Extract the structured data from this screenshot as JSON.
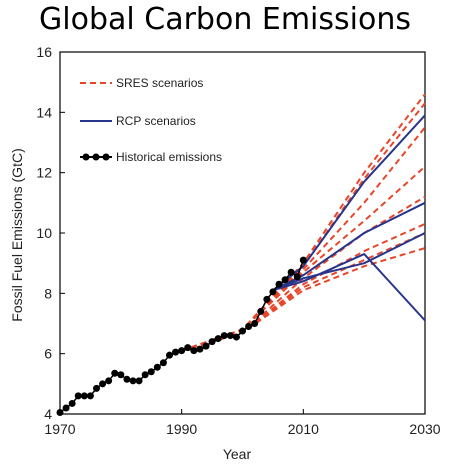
{
  "chart_data": {
    "type": "line",
    "title": "Global Carbon Emissions",
    "xlabel": "Year",
    "ylabel": "Fossil Fuel Emissions (GtC)",
    "xlim": [
      1970,
      2030
    ],
    "ylim": [
      4,
      16
    ],
    "x_ticks": [
      1970,
      1990,
      2010,
      2030
    ],
    "y_ticks": [
      4,
      6,
      8,
      10,
      12,
      14,
      16
    ],
    "grid": false,
    "legend_position": "top-left",
    "legend": [
      {
        "label": "SRES scenarios",
        "style": "dashed",
        "color": "#e8462a"
      },
      {
        "label": "RCP scenarios",
        "style": "solid",
        "color": "#27358c"
      },
      {
        "label": "Historical emissions",
        "style": "solid-markers",
        "color": "#000000"
      }
    ],
    "series": [
      {
        "name": "Historical emissions",
        "kind": "historical",
        "color": "#000000",
        "points": [
          [
            1970,
            4.05
          ],
          [
            1971,
            4.2
          ],
          [
            1972,
            4.35
          ],
          [
            1973,
            4.6
          ],
          [
            1974,
            4.6
          ],
          [
            1975,
            4.6
          ],
          [
            1976,
            4.85
          ],
          [
            1977,
            5.0
          ],
          [
            1978,
            5.1
          ],
          [
            1979,
            5.35
          ],
          [
            1980,
            5.3
          ],
          [
            1981,
            5.15
          ],
          [
            1982,
            5.1
          ],
          [
            1983,
            5.1
          ],
          [
            1984,
            5.3
          ],
          [
            1985,
            5.4
          ],
          [
            1986,
            5.55
          ],
          [
            1987,
            5.7
          ],
          [
            1988,
            5.95
          ],
          [
            1989,
            6.05
          ],
          [
            1990,
            6.1
          ],
          [
            1991,
            6.2
          ],
          [
            1992,
            6.1
          ],
          [
            1993,
            6.15
          ],
          [
            1994,
            6.25
          ],
          [
            1995,
            6.4
          ],
          [
            1996,
            6.5
          ],
          [
            1997,
            6.6
          ],
          [
            1998,
            6.6
          ],
          [
            1999,
            6.55
          ],
          [
            2000,
            6.75
          ],
          [
            2001,
            6.9
          ],
          [
            2002,
            7.0
          ],
          [
            2003,
            7.4
          ],
          [
            2004,
            7.8
          ],
          [
            2005,
            8.05
          ],
          [
            2006,
            8.3
          ],
          [
            2007,
            8.45
          ],
          [
            2008,
            8.7
          ],
          [
            2009,
            8.55
          ],
          [
            2010,
            9.1
          ]
        ]
      },
      {
        "name": "",
        "kind": "sres",
        "color": "#e8462a",
        "points": [
          [
            1990,
            6.1
          ],
          [
            2000,
            6.8
          ],
          [
            2010,
            9.0
          ],
          [
            2020,
            12.0
          ],
          [
            2030,
            14.6
          ]
        ]
      },
      {
        "name": "",
        "kind": "sres",
        "color": "#e8462a",
        "points": [
          [
            1990,
            6.1
          ],
          [
            2000,
            6.8
          ],
          [
            2010,
            8.9
          ],
          [
            2020,
            11.8
          ],
          [
            2030,
            14.3
          ]
        ]
      },
      {
        "name": "",
        "kind": "sres",
        "color": "#e8462a",
        "points": [
          [
            1990,
            6.1
          ],
          [
            2000,
            6.8
          ],
          [
            2010,
            8.8
          ],
          [
            2020,
            11.0
          ],
          [
            2030,
            13.5
          ]
        ]
      },
      {
        "name": "",
        "kind": "sres",
        "color": "#e8462a",
        "points": [
          [
            1990,
            6.1
          ],
          [
            2000,
            6.8
          ],
          [
            2010,
            8.7
          ],
          [
            2020,
            10.4
          ],
          [
            2030,
            12.2
          ]
        ]
      },
      {
        "name": "",
        "kind": "sres",
        "color": "#e8462a",
        "points": [
          [
            1990,
            6.1
          ],
          [
            2000,
            6.7
          ],
          [
            2010,
            8.5
          ],
          [
            2020,
            10.0
          ],
          [
            2030,
            11.2
          ]
        ]
      },
      {
        "name": "",
        "kind": "sres",
        "color": "#e8462a",
        "points": [
          [
            1990,
            6.1
          ],
          [
            2000,
            6.7
          ],
          [
            2010,
            8.3
          ],
          [
            2020,
            9.4
          ],
          [
            2030,
            10.3
          ]
        ]
      },
      {
        "name": "",
        "kind": "sres",
        "color": "#e8462a",
        "points": [
          [
            1990,
            6.1
          ],
          [
            2000,
            6.7
          ],
          [
            2010,
            8.2
          ],
          [
            2020,
            9.1
          ],
          [
            2030,
            10.0
          ]
        ]
      },
      {
        "name": "",
        "kind": "sres",
        "color": "#e8462a",
        "points": [
          [
            1990,
            6.1
          ],
          [
            2000,
            6.7
          ],
          [
            2010,
            8.1
          ],
          [
            2020,
            8.9
          ],
          [
            2030,
            9.5
          ]
        ]
      },
      {
        "name": "",
        "kind": "rcp",
        "color": "#27358c",
        "points": [
          [
            2005,
            8.1
          ],
          [
            2010,
            8.9
          ],
          [
            2020,
            11.7
          ],
          [
            2030,
            13.9
          ]
        ]
      },
      {
        "name": "",
        "kind": "rcp",
        "color": "#27358c",
        "points": [
          [
            2005,
            8.1
          ],
          [
            2010,
            8.6
          ],
          [
            2020,
            10.0
          ],
          [
            2030,
            11.0
          ]
        ]
      },
      {
        "name": "",
        "kind": "rcp",
        "color": "#27358c",
        "points": [
          [
            2005,
            8.1
          ],
          [
            2010,
            8.5
          ],
          [
            2020,
            9.0
          ],
          [
            2030,
            10.0
          ]
        ]
      },
      {
        "name": "",
        "kind": "rcp",
        "color": "#27358c",
        "points": [
          [
            2005,
            8.1
          ],
          [
            2010,
            8.4
          ],
          [
            2020,
            9.3
          ],
          [
            2030,
            7.1
          ]
        ]
      }
    ]
  }
}
